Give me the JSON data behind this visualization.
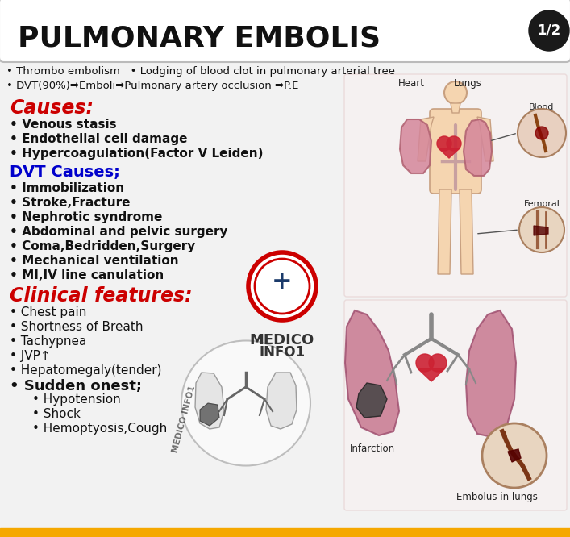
{
  "bg_color": "#f2f2f2",
  "title_text": "PULMONARY EMBOLIS",
  "title_badge": "1/2",
  "title_color": "#111111",
  "title_fontsize": 26,
  "intro_lines": [
    "• Thrombo embolism   • Lodging of blood clot in pulmonary arterial tree",
    "• DVT(90%)➡Emboli➡Pulmonary artery occlusion ➡P.E"
  ],
  "sections": [
    {
      "heading": "Causes:",
      "heading_color": "#cc0000",
      "heading_italic": true,
      "heading_size": 17,
      "items": [
        {
          "text": "Venous stasis",
          "bold": true,
          "indent": 0,
          "size": 11
        },
        {
          "text": "Endothelial cell damage",
          "bold": true,
          "indent": 0,
          "size": 11
        },
        {
          "text": "Hypercoagulation(Factor V Leiden)",
          "bold": true,
          "indent": 0,
          "size": 11
        }
      ]
    },
    {
      "heading": "DVT Causes;",
      "heading_color": "#0000cc",
      "heading_italic": false,
      "heading_size": 14,
      "items": [
        {
          "text": "Immobilization",
          "bold": true,
          "indent": 0,
          "size": 11
        },
        {
          "text": "Stroke,Fracture",
          "bold": true,
          "indent": 0,
          "size": 11
        },
        {
          "text": "Nephrotic syndrome",
          "bold": true,
          "indent": 0,
          "size": 11
        },
        {
          "text": "Abdominal and pelvic surgery",
          "bold": true,
          "indent": 0,
          "size": 11
        },
        {
          "text": "Coma,Bedridden,Surgery",
          "bold": true,
          "indent": 0,
          "size": 11
        },
        {
          "text": "Mechanical ventilation",
          "bold": true,
          "indent": 0,
          "size": 11
        },
        {
          "text": "MI,IV line canulation",
          "bold": true,
          "indent": 0,
          "size": 11
        }
      ]
    },
    {
      "heading": "Clinical features:",
      "heading_color": "#cc0000",
      "heading_italic": true,
      "heading_size": 17,
      "items": [
        {
          "text": "Chest pain",
          "bold": false,
          "indent": 0,
          "size": 11
        },
        {
          "text": "Shortness of Breath",
          "bold": false,
          "indent": 0,
          "size": 11
        },
        {
          "text": "Tachypnea",
          "bold": false,
          "indent": 0,
          "size": 11
        },
        {
          "text": "JVP↑",
          "bold": false,
          "indent": 0,
          "size": 11
        },
        {
          "text": "Hepatomegaly(tender)",
          "bold": false,
          "indent": 0,
          "size": 11
        },
        {
          "text": "Sudden onest;",
          "bold": true,
          "indent": 0,
          "size": 13
        },
        {
          "text": "Hypotension",
          "bold": false,
          "indent": 1,
          "size": 11
        },
        {
          "text": "Shock",
          "bold": false,
          "indent": 1,
          "size": 11
        },
        {
          "text": "Hemoptyosis,Cough",
          "bold": false,
          "indent": 1,
          "size": 11
        }
      ]
    }
  ]
}
